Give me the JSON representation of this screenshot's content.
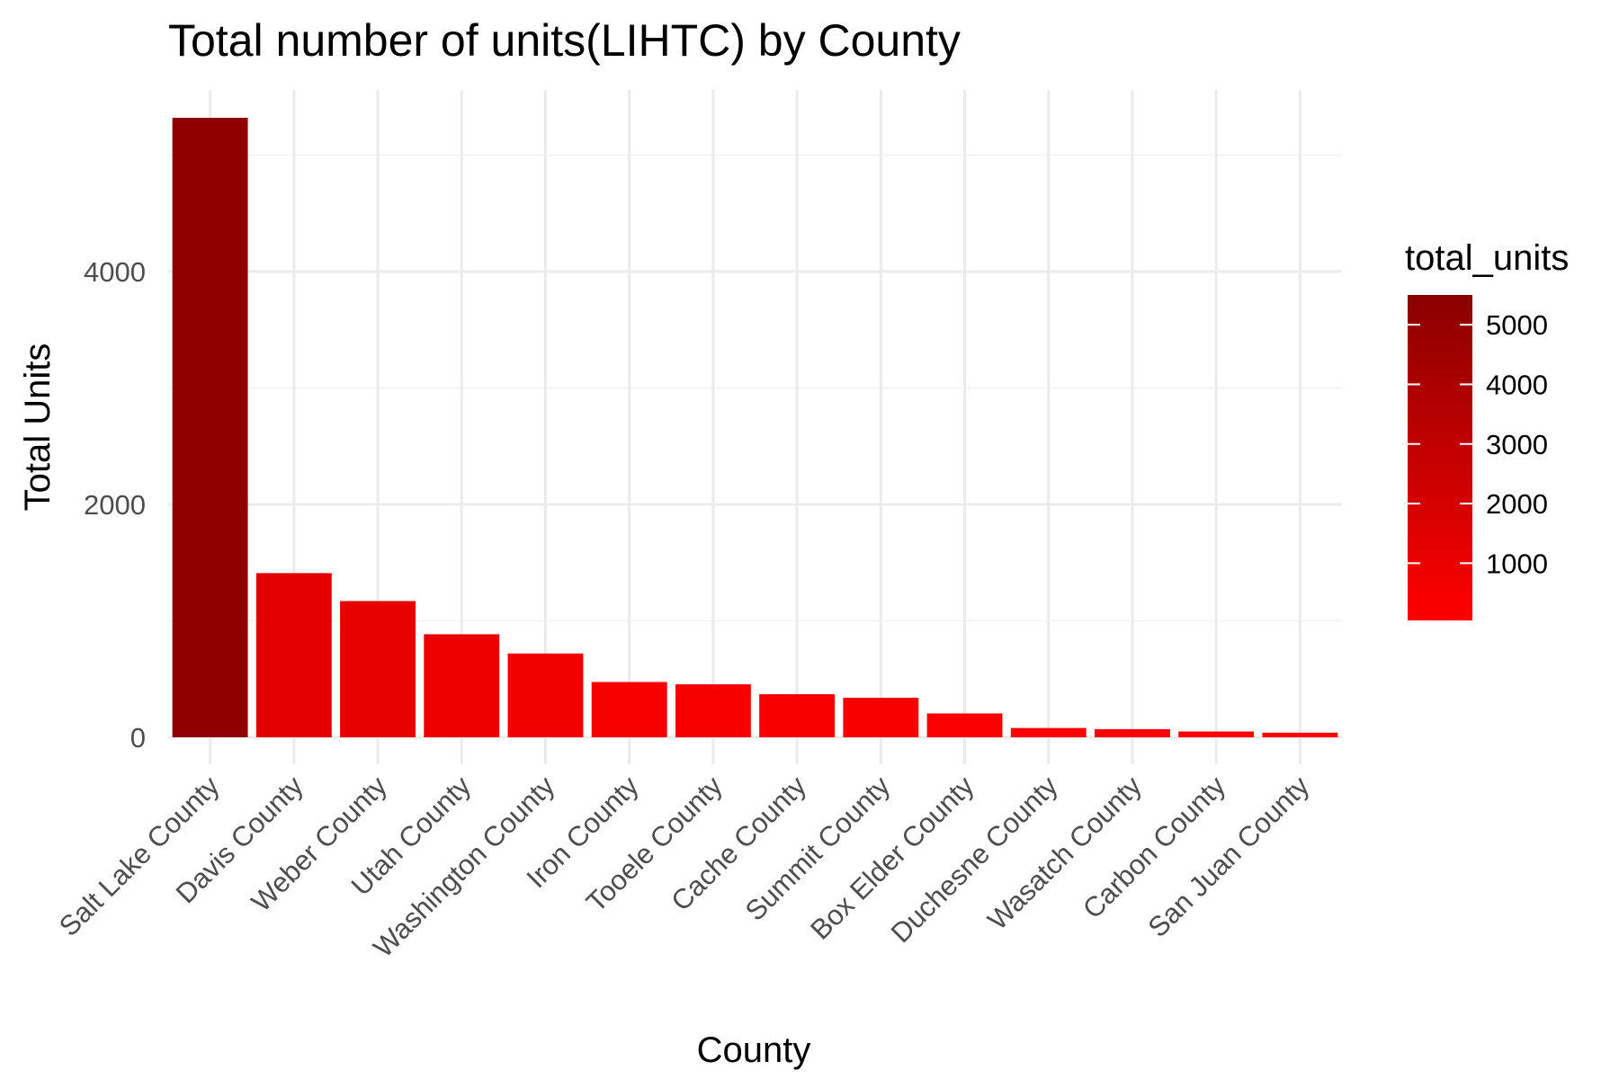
{
  "chart_data": {
    "type": "bar",
    "title": "Total number of units(LIHTC) by County",
    "xlabel": "County",
    "ylabel": "Total Units",
    "categories": [
      "Salt Lake County",
      "Davis County",
      "Weber County",
      "Utah County",
      "Washington County",
      "Iron County",
      "Tooele County",
      "Cache County",
      "Summit County",
      "Box Elder County",
      "Duchesne County",
      "Wasatch County",
      "Carbon County",
      "San Juan County"
    ],
    "values": [
      5320,
      1410,
      1170,
      885,
      720,
      475,
      455,
      370,
      340,
      205,
      80,
      70,
      50,
      40
    ],
    "ylim": [
      0,
      5320
    ],
    "yticks": [
      0,
      2000,
      4000
    ],
    "ytick_labels": [
      "0",
      "2000",
      "4000"
    ],
    "grid": true,
    "legend": {
      "title": "total_units",
      "position": "right",
      "type": "colorbar",
      "range": [
        40,
        5500
      ],
      "ticks": [
        1000,
        2000,
        3000,
        4000,
        5000
      ],
      "tick_labels": [
        "1000",
        "2000",
        "3000",
        "4000",
        "5000"
      ],
      "low_color": "#ff0000",
      "high_color": "#8b0000"
    }
  }
}
